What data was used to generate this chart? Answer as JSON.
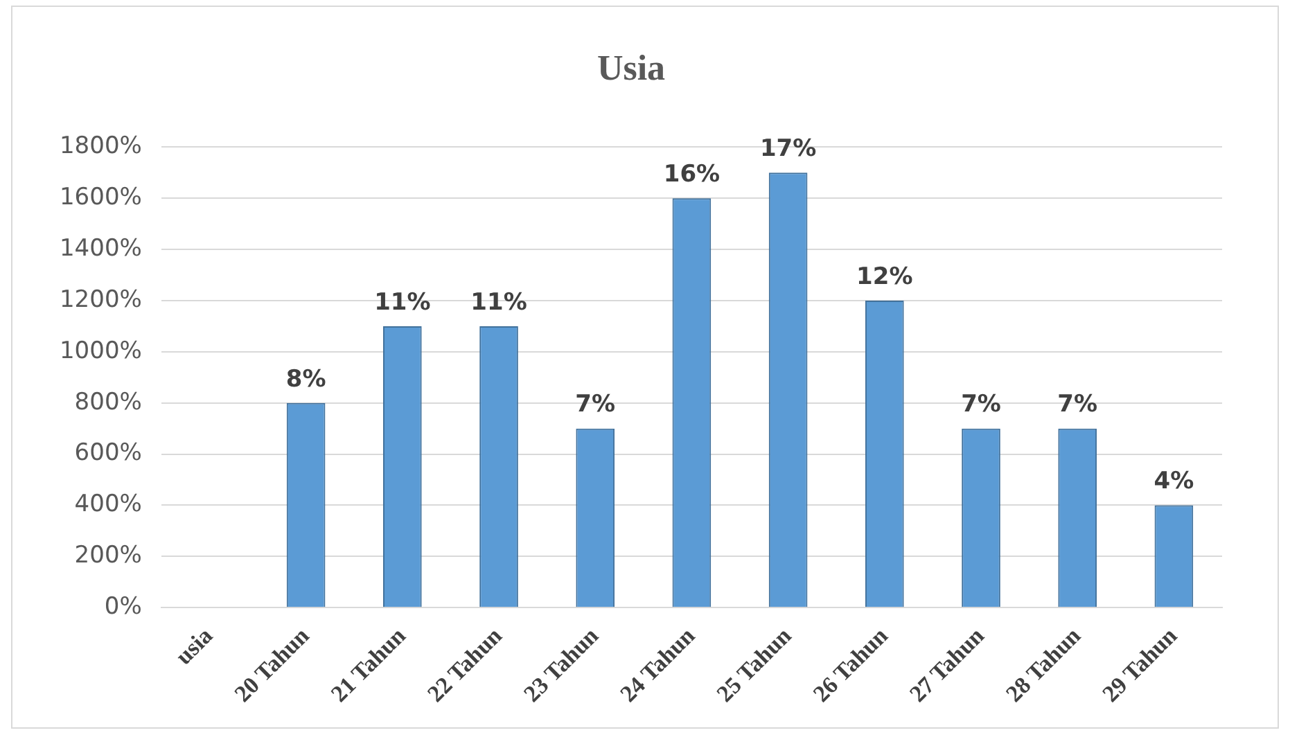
{
  "chart_data": {
    "type": "bar",
    "title": "Usia",
    "categories": [
      "usia",
      "20 Tahun",
      "21 Tahun",
      "22 Tahun",
      "23 Tahun",
      "24 Tahun",
      "25 Tahun",
      "26 Tahun",
      "27 Tahun",
      "28 Tahun",
      "29 Tahun"
    ],
    "values": [
      null,
      8,
      11,
      11,
      7,
      16,
      17,
      12,
      7,
      7,
      4
    ],
    "value_labels": [
      null,
      "8%",
      "11%",
      "11%",
      "7%",
      "16%",
      "17%",
      "12%",
      "7%",
      "7%",
      "4%"
    ],
    "color": "#5b9bd5",
    "ylim": [
      0,
      18
    ],
    "yticks": [
      {
        "value": 0,
        "label": "0%"
      },
      {
        "value": 2,
        "label": "200%"
      },
      {
        "value": 4,
        "label": "400%"
      },
      {
        "value": 6,
        "label": "600%"
      },
      {
        "value": 8,
        "label": "800%"
      },
      {
        "value": 10,
        "label": "1000%"
      },
      {
        "value": 12,
        "label": "1200%"
      },
      {
        "value": 14,
        "label": "1400%"
      },
      {
        "value": 16,
        "label": "1600%"
      },
      {
        "value": 18,
        "label": "1800%"
      }
    ],
    "grid": "y",
    "legend": false
  }
}
